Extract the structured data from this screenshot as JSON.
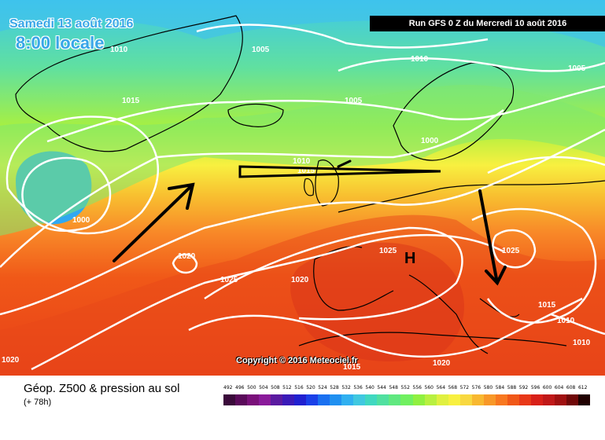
{
  "header": {
    "date": "Samedi 13 août 2016",
    "time": "8:00 locale",
    "run": "Run GFS 0 Z du Mercredi 10 août 2016"
  },
  "copyright": "Copyright © 2016 Meteociel.fr",
  "footer": {
    "title": "Géop. Z500 & pression au sol",
    "subtitle": "(+ 78h)"
  },
  "pressure_labels": [
    "1010",
    "1005",
    "1010",
    "1005",
    "1015",
    "1005",
    "1000",
    "1000",
    "1010",
    "1015",
    "1020",
    "1025",
    "1020",
    "1025",
    "1025",
    "1015",
    "1010",
    "1010",
    "1020",
    "1015",
    "1020"
  ],
  "high_label": "H",
  "scale": {
    "values": [
      "492",
      "496",
      "500",
      "504",
      "508",
      "512",
      "516",
      "520",
      "524",
      "528",
      "532",
      "536",
      "540",
      "544",
      "548",
      "552",
      "556",
      "560",
      "564",
      "568",
      "572",
      "576",
      "580",
      "584",
      "588",
      "592",
      "596",
      "600",
      "604",
      "608",
      "612"
    ],
    "colors": [
      "#3a0a3a",
      "#5a0a5a",
      "#7a107a",
      "#8a1a9a",
      "#5a1aa0",
      "#3a1ab8",
      "#2020d0",
      "#1a40e8",
      "#1a70f0",
      "#2090f0",
      "#30b0f0",
      "#40c8e0",
      "#40d8c0",
      "#50e0a0",
      "#60e880",
      "#70f060",
      "#90f040",
      "#b8f040",
      "#e0f040",
      "#f8f040",
      "#f8d840",
      "#f8b830",
      "#f89828",
      "#f87820",
      "#f05818",
      "#e83818",
      "#d82018",
      "#c01818",
      "#a01010",
      "#700808",
      "#200000"
    ]
  }
}
